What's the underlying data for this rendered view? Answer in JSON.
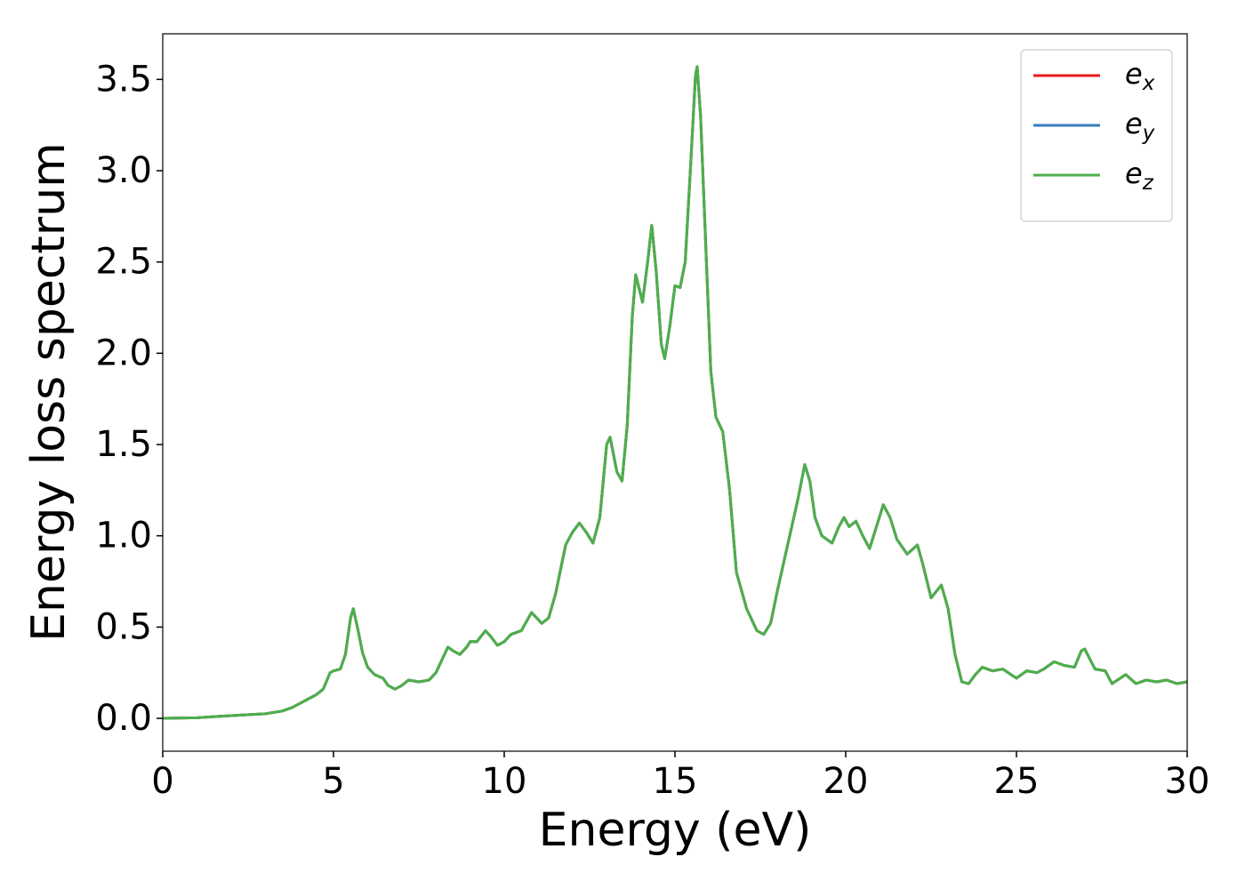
{
  "chart_data": {
    "type": "line",
    "x_label": "Energy (eV)",
    "y_label": "Energy loss spectrum",
    "x": [
      0,
      1,
      2,
      3,
      3.5,
      3.8,
      4.0,
      4.2,
      4.5,
      4.7,
      4.9,
      5.0,
      5.2,
      5.35,
      5.5,
      5.58,
      5.7,
      5.85,
      6.0,
      6.2,
      6.45,
      6.6,
      6.8,
      7.0,
      7.2,
      7.5,
      7.8,
      8.0,
      8.2,
      8.35,
      8.5,
      8.7,
      8.9,
      9.0,
      9.2,
      9.45,
      9.6,
      9.8,
      10.0,
      10.2,
      10.5,
      10.8,
      11.1,
      11.3,
      11.5,
      11.8,
      12.0,
      12.2,
      12.4,
      12.6,
      12.8,
      13.0,
      13.1,
      13.3,
      13.45,
      13.6,
      13.75,
      13.85,
      14.05,
      14.2,
      14.32,
      14.45,
      14.6,
      14.7,
      14.85,
      15.0,
      15.15,
      15.3,
      15.45,
      15.6,
      15.65,
      15.75,
      15.9,
      16.05,
      16.2,
      16.4,
      16.6,
      16.8,
      17.1,
      17.4,
      17.6,
      17.8,
      18.0,
      18.3,
      18.6,
      18.8,
      18.95,
      19.1,
      19.3,
      19.6,
      19.8,
      19.95,
      20.1,
      20.3,
      20.5,
      20.7,
      20.9,
      21.1,
      21.3,
      21.5,
      21.8,
      22.1,
      22.25,
      22.5,
      22.8,
      23.0,
      23.2,
      23.4,
      23.6,
      23.8,
      24.0,
      24.3,
      24.6,
      25.0,
      25.3,
      25.6,
      25.8,
      26.1,
      26.4,
      26.7,
      26.9,
      27.0,
      27.3,
      27.6,
      27.8,
      28.2,
      28.5,
      28.8,
      29.1,
      29.4,
      29.7,
      30.0
    ],
    "series": [
      {
        "name": "e_x",
        "color": "#e41a1c",
        "values": [
          0,
          0.003,
          0.015,
          0.025,
          0.04,
          0.06,
          0.08,
          0.1,
          0.13,
          0.16,
          0.25,
          0.26,
          0.27,
          0.35,
          0.55,
          0.6,
          0.5,
          0.36,
          0.28,
          0.24,
          0.22,
          0.18,
          0.16,
          0.18,
          0.21,
          0.2,
          0.21,
          0.25,
          0.33,
          0.39,
          0.37,
          0.35,
          0.39,
          0.42,
          0.42,
          0.48,
          0.45,
          0.4,
          0.42,
          0.46,
          0.48,
          0.58,
          0.52,
          0.55,
          0.68,
          0.95,
          1.02,
          1.07,
          1.02,
          0.96,
          1.1,
          1.5,
          1.54,
          1.35,
          1.3,
          1.6,
          2.2,
          2.43,
          2.28,
          2.5,
          2.7,
          2.45,
          2.05,
          1.97,
          2.15,
          2.37,
          2.36,
          2.5,
          3.0,
          3.52,
          3.57,
          3.3,
          2.6,
          1.9,
          1.65,
          1.57,
          1.25,
          0.8,
          0.6,
          0.48,
          0.46,
          0.52,
          0.7,
          0.95,
          1.2,
          1.39,
          1.3,
          1.1,
          1.0,
          0.96,
          1.05,
          1.1,
          1.05,
          1.08,
          1.0,
          0.93,
          1.05,
          1.17,
          1.1,
          0.98,
          0.9,
          0.95,
          0.85,
          0.66,
          0.73,
          0.6,
          0.35,
          0.2,
          0.19,
          0.24,
          0.28,
          0.26,
          0.27,
          0.22,
          0.26,
          0.25,
          0.27,
          0.31,
          0.29,
          0.28,
          0.37,
          0.38,
          0.27,
          0.26,
          0.19,
          0.24,
          0.19,
          0.21,
          0.2,
          0.21,
          0.19,
          0.2
        ]
      },
      {
        "name": "e_y",
        "color": "#377eb8",
        "values": [
          0,
          0.003,
          0.015,
          0.025,
          0.04,
          0.06,
          0.08,
          0.1,
          0.13,
          0.16,
          0.25,
          0.26,
          0.27,
          0.35,
          0.55,
          0.6,
          0.5,
          0.36,
          0.28,
          0.24,
          0.22,
          0.18,
          0.16,
          0.18,
          0.21,
          0.2,
          0.21,
          0.25,
          0.33,
          0.39,
          0.37,
          0.35,
          0.39,
          0.42,
          0.42,
          0.48,
          0.45,
          0.4,
          0.42,
          0.46,
          0.48,
          0.58,
          0.52,
          0.55,
          0.68,
          0.95,
          1.02,
          1.07,
          1.02,
          0.96,
          1.1,
          1.5,
          1.54,
          1.35,
          1.3,
          1.6,
          2.2,
          2.43,
          2.28,
          2.5,
          2.7,
          2.45,
          2.05,
          1.97,
          2.15,
          2.37,
          2.36,
          2.5,
          3.0,
          3.52,
          3.57,
          3.3,
          2.6,
          1.9,
          1.65,
          1.57,
          1.25,
          0.8,
          0.6,
          0.48,
          0.46,
          0.52,
          0.7,
          0.95,
          1.2,
          1.39,
          1.3,
          1.1,
          1.0,
          0.96,
          1.05,
          1.1,
          1.05,
          1.08,
          1.0,
          0.93,
          1.05,
          1.17,
          1.1,
          0.98,
          0.9,
          0.95,
          0.85,
          0.66,
          0.73,
          0.6,
          0.35,
          0.2,
          0.19,
          0.24,
          0.28,
          0.26,
          0.27,
          0.22,
          0.26,
          0.25,
          0.27,
          0.31,
          0.29,
          0.28,
          0.37,
          0.38,
          0.27,
          0.26,
          0.19,
          0.24,
          0.19,
          0.21,
          0.2,
          0.21,
          0.19,
          0.2
        ]
      },
      {
        "name": "e_z",
        "color": "#4daf4a",
        "values": [
          0,
          0.003,
          0.015,
          0.025,
          0.04,
          0.06,
          0.08,
          0.1,
          0.13,
          0.16,
          0.25,
          0.26,
          0.27,
          0.35,
          0.55,
          0.6,
          0.5,
          0.36,
          0.28,
          0.24,
          0.22,
          0.18,
          0.16,
          0.18,
          0.21,
          0.2,
          0.21,
          0.25,
          0.33,
          0.39,
          0.37,
          0.35,
          0.39,
          0.42,
          0.42,
          0.48,
          0.45,
          0.4,
          0.42,
          0.46,
          0.48,
          0.58,
          0.52,
          0.55,
          0.68,
          0.95,
          1.02,
          1.07,
          1.02,
          0.96,
          1.1,
          1.5,
          1.54,
          1.35,
          1.3,
          1.6,
          2.2,
          2.43,
          2.28,
          2.5,
          2.7,
          2.45,
          2.05,
          1.97,
          2.15,
          2.37,
          2.36,
          2.5,
          3.0,
          3.52,
          3.57,
          3.3,
          2.6,
          1.9,
          1.65,
          1.57,
          1.25,
          0.8,
          0.6,
          0.48,
          0.46,
          0.52,
          0.7,
          0.95,
          1.2,
          1.39,
          1.3,
          1.1,
          1.0,
          0.96,
          1.05,
          1.1,
          1.05,
          1.08,
          1.0,
          0.93,
          1.05,
          1.17,
          1.1,
          0.98,
          0.9,
          0.95,
          0.85,
          0.66,
          0.73,
          0.6,
          0.35,
          0.2,
          0.19,
          0.24,
          0.28,
          0.26,
          0.27,
          0.22,
          0.26,
          0.25,
          0.27,
          0.31,
          0.29,
          0.28,
          0.37,
          0.38,
          0.27,
          0.26,
          0.19,
          0.24,
          0.19,
          0.21,
          0.2,
          0.21,
          0.19,
          0.2
        ]
      }
    ],
    "xlim": [
      0,
      30
    ],
    "xticks": [
      0,
      5,
      10,
      15,
      20,
      25,
      30
    ],
    "ylim": [
      -0.18,
      3.75
    ],
    "yticks": [
      {
        "value": 0,
        "label": "0.0"
      },
      0.5,
      {
        "value": 1,
        "label": "1.0"
      },
      1.5,
      {
        "value": 2,
        "label": "2.0"
      },
      2.5,
      {
        "value": 3,
        "label": "3.0"
      },
      3.5
    ],
    "grid": false,
    "legend": "upper right"
  }
}
